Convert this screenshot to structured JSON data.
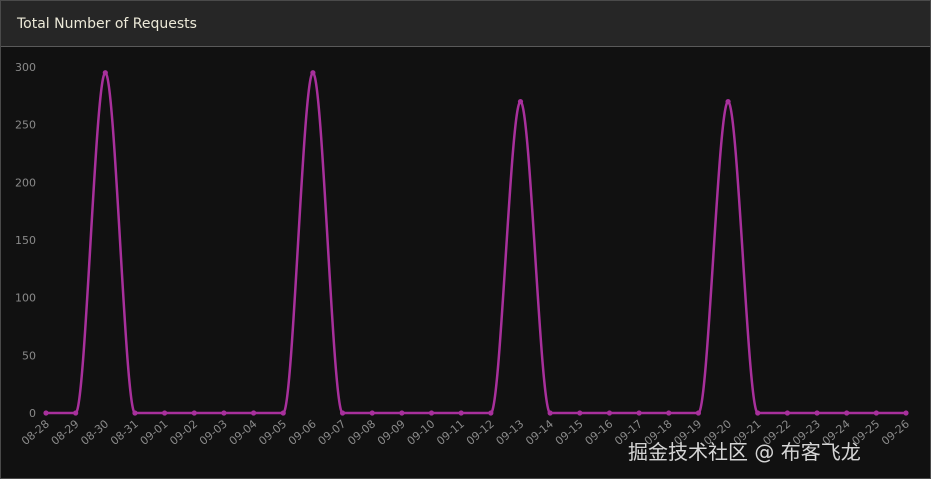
{
  "header": {
    "title": "Total Number of Requests"
  },
  "watermark": "掘金技术社区 @ 布客飞龙",
  "chart_data": {
    "type": "line",
    "title": "Total Number of Requests",
    "categories": [
      "08-28",
      "08-29",
      "08-30",
      "08-31",
      "09-01",
      "09-02",
      "09-03",
      "09-04",
      "09-05",
      "09-06",
      "09-07",
      "09-08",
      "09-09",
      "09-10",
      "09-11",
      "09-12",
      "09-13",
      "09-14",
      "09-15",
      "09-16",
      "09-17",
      "09-18",
      "09-19",
      "09-20",
      "09-21",
      "09-22",
      "09-23",
      "09-24",
      "09-25",
      "09-26"
    ],
    "series": [
      {
        "values": [
          0,
          0,
          295,
          0,
          0,
          0,
          0,
          0,
          0,
          295,
          0,
          0,
          0,
          0,
          0,
          0,
          270,
          0,
          0,
          0,
          0,
          0,
          0,
          270,
          0,
          0,
          0,
          0,
          0,
          0
        ],
        "color": "#a8309c"
      }
    ],
    "yticks": [
      0,
      50,
      100,
      150,
      200,
      250,
      300
    ],
    "ylim": [
      0,
      300
    ],
    "grid": false,
    "legend": "none"
  }
}
